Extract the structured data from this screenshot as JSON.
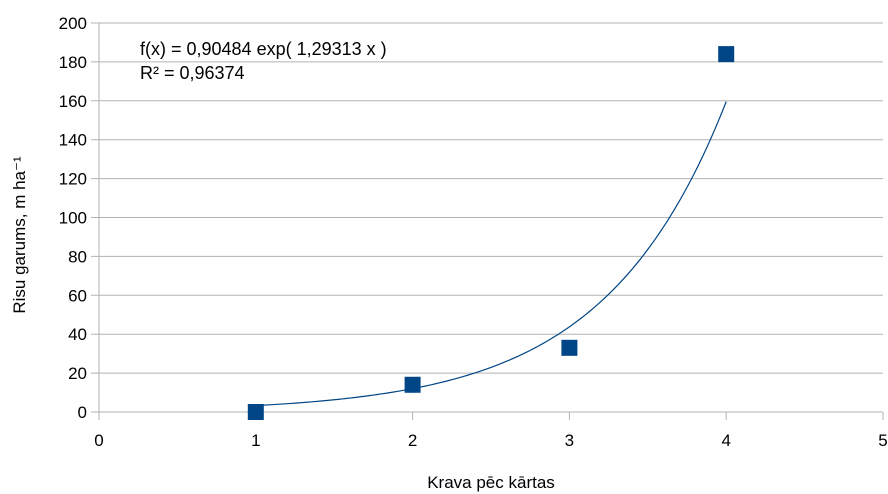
{
  "chart_data": {
    "type": "scatter",
    "xlabel": "Krava pēc kārtas",
    "ylabel": "Risu garums, m ha⁻¹",
    "xlim": [
      0,
      5
    ],
    "ylim": [
      0,
      200
    ],
    "x_ticks": [
      "0",
      "1",
      "2",
      "3",
      "4",
      "5"
    ],
    "y_ticks": [
      "0",
      "20",
      "40",
      "60",
      "80",
      "100",
      "120",
      "140",
      "160",
      "180",
      "200"
    ],
    "grid": "horizontal",
    "series": [
      {
        "marker": "square",
        "color": "#004586",
        "points": [
          {
            "x": 1,
            "y": 0
          },
          {
            "x": 2,
            "y": 14
          },
          {
            "x": 3,
            "y": 33
          },
          {
            "x": 4,
            "y": 184
          }
        ]
      }
    ],
    "trendline": {
      "type": "exponential",
      "a": 0.90484,
      "b": 1.29313,
      "x_range": [
        1,
        4
      ],
      "color": "#004586",
      "equation": "f(x) = 0,90484 exp( 1,29313 x )",
      "r_squared": "R² = 0,96374"
    }
  }
}
